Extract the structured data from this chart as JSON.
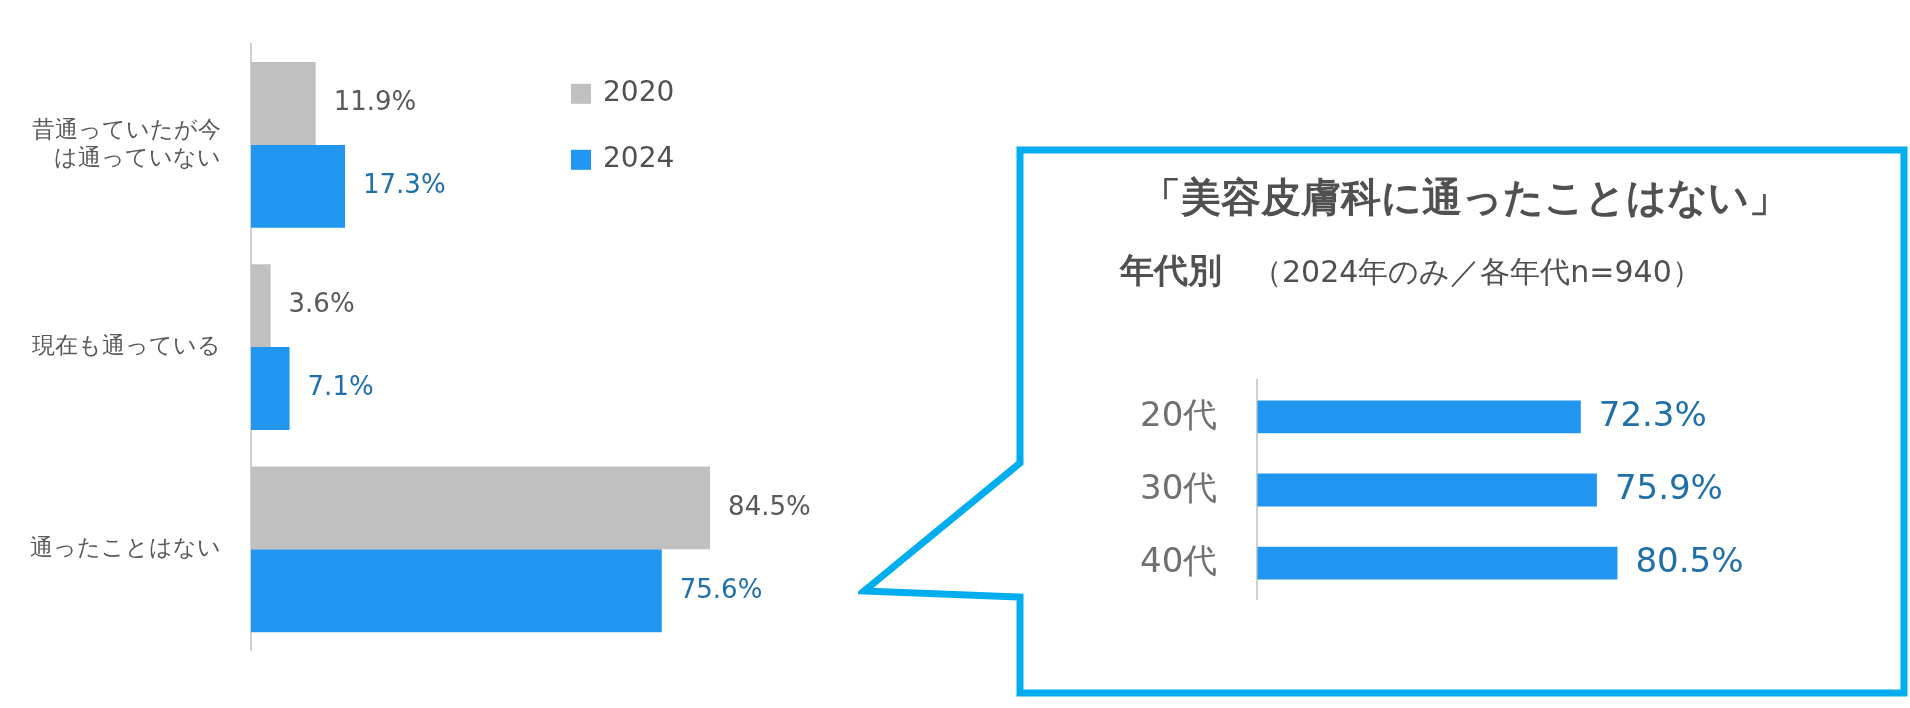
{
  "chart_data": [
    {
      "type": "bar",
      "orientation": "horizontal",
      "categories": [
        "昔通っていたが今は通っていない",
        "現在も通っている",
        "通ったことはない"
      ],
      "series": [
        {
          "name": "2020",
          "color": "#c0c0c0",
          "values": [
            11.9,
            3.6,
            84.5
          ],
          "value_labels": [
            "11.9%",
            "3.6%",
            "84.5%"
          ]
        },
        {
          "name": "2024",
          "color": "#2196f0",
          "values": [
            17.3,
            7.1,
            75.6
          ],
          "value_labels": [
            "17.3%",
            "7.1%",
            "75.6%"
          ]
        }
      ],
      "tick_labels": "y",
      "legend": "top",
      "grid": false
    },
    {
      "type": "bar",
      "orientation": "horizontal",
      "title": "「美容皮膚科に通ったことはない」",
      "subtitle": "年代別",
      "annotations": [
        "（2024年のみ／各年代n=940）"
      ],
      "categories": [
        "20代",
        "30代",
        "40代"
      ],
      "series": [
        {
          "color": "#2196f0",
          "values": [
            72.3,
            75.9,
            80.5
          ],
          "value_labels": [
            "72.3%",
            "75.9%",
            "80.5%"
          ]
        }
      ],
      "tick_labels": "y",
      "grid": false
    }
  ]
}
